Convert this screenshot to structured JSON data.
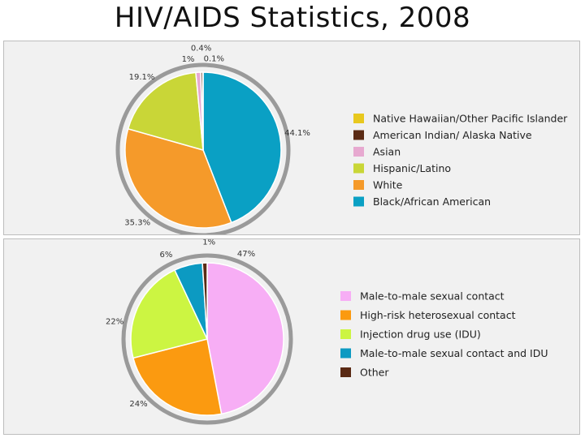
{
  "title": "HIV/AIDS Statistics, 2008",
  "chart_data": [
    {
      "type": "pie",
      "title": "",
      "categories": [
        "Native Hawaiian/Other Pacific Islander",
        "American Indian/ Alaska Native",
        "Asian",
        "Hispanic/Latino",
        "White",
        "Black/African American"
      ],
      "values": [
        0.1,
        0.4,
        1,
        19.1,
        35.3,
        44.1
      ],
      "value_labels": [
        "0.1%",
        "0.4%",
        "1%",
        "19.1%",
        "35.3%",
        "44.1%"
      ],
      "colors": [
        "#e8c81e",
        "#5a2a14",
        "#e7a9d0",
        "#c9d637",
        "#f59a2a",
        "#0aa0c4"
      ],
      "legend_placement": "right"
    },
    {
      "type": "pie",
      "title": "",
      "categories": [
        "Male-to-male sexual contact",
        "High-risk heterosexual contact",
        "Injection drug use (IDU)",
        "Male-to-male sexual contact and IDU",
        "Other"
      ],
      "values": [
        47,
        24,
        22,
        6,
        1
      ],
      "value_labels": [
        "47%",
        "24%",
        "22%",
        "6%",
        "1%"
      ],
      "colors": [
        "#f7aef5",
        "#fb9a10",
        "#ccf542",
        "#0c9ac2",
        "#5a2a14"
      ],
      "legend_placement": "right"
    }
  ]
}
